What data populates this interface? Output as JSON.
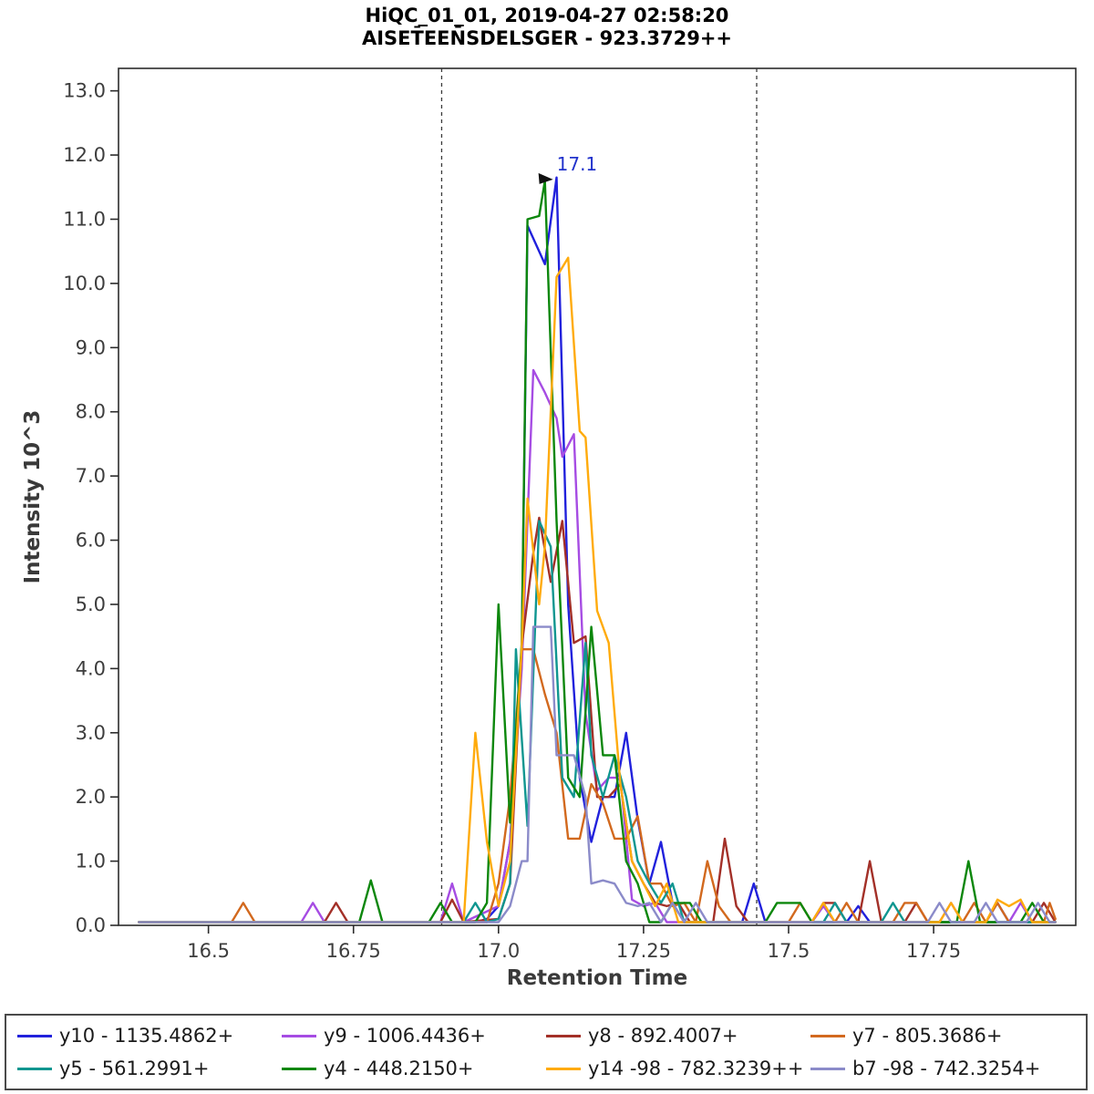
{
  "title": {
    "line1": "HiQC_01_01, 2019-04-27 02:58:20",
    "line2": "AISET̄EEN̄SDELSGER - 923.3729++"
  },
  "chart_data": {
    "type": "line",
    "title": "HiQC_01_01, 2019-04-27 02:58:20",
    "subtitle": "AISET̄EEN̄SDELSGER - 923.3729++",
    "xlabel": "Retention Time",
    "ylabel": "Intensity 10^3",
    "xlim": [
      16.345,
      17.995
    ],
    "ylim": [
      0,
      13.35
    ],
    "x_ticks": [
      16.5,
      16.75,
      17.0,
      17.25,
      17.5,
      17.75
    ],
    "x_tick_labels": [
      "16.5",
      "16.75",
      "17.0",
      "17.25",
      "17.5",
      "17.75"
    ],
    "y_ticks": [
      0,
      1,
      2,
      3,
      4,
      5,
      6,
      7,
      8,
      9,
      10,
      11,
      12,
      13
    ],
    "y_tick_labels": [
      "0.0",
      "1.0",
      "2.0",
      "3.0",
      "4.0",
      "5.0",
      "6.0",
      "7.0",
      "8.0",
      "9.0",
      "10.0",
      "11.0",
      "12.0",
      "13.0"
    ],
    "grid": false,
    "legend_position": "bottom",
    "integration_boundaries": [
      16.902,
      17.445
    ],
    "peak_annotation": {
      "label": "17.1",
      "x": 17.094,
      "y": 11.62
    },
    "series": [
      {
        "id": "y10",
        "label": "y10 - 1135.4862+",
        "color": "#2121dc",
        "points": [
          [
            16.38,
            0.05
          ],
          [
            16.96,
            0.05
          ],
          [
            16.98,
            0.1
          ],
          [
            17.0,
            0.3
          ],
          [
            17.02,
            1.3
          ],
          [
            17.04,
            4.3
          ],
          [
            17.05,
            10.9
          ],
          [
            17.07,
            10.5
          ],
          [
            17.08,
            10.3
          ],
          [
            17.1,
            11.65
          ],
          [
            17.12,
            5.0
          ],
          [
            17.14,
            2.3
          ],
          [
            17.16,
            1.3
          ],
          [
            17.18,
            2.0
          ],
          [
            17.2,
            2.0
          ],
          [
            17.22,
            3.0
          ],
          [
            17.24,
            1.65
          ],
          [
            17.26,
            0.65
          ],
          [
            17.28,
            1.3
          ],
          [
            17.3,
            0.35
          ],
          [
            17.32,
            0.05
          ],
          [
            17.42,
            0.05
          ],
          [
            17.44,
            0.65
          ],
          [
            17.46,
            0.05
          ],
          [
            17.6,
            0.05
          ],
          [
            17.62,
            0.3
          ],
          [
            17.64,
            0.05
          ],
          [
            17.84,
            0.05
          ],
          [
            17.86,
            0.35
          ],
          [
            17.88,
            0.05
          ],
          [
            17.96,
            0.05
          ]
        ]
      },
      {
        "id": "y9",
        "label": "y9 - 1006.4436+",
        "color": "#a64ce3",
        "points": [
          [
            16.38,
            0.05
          ],
          [
            16.66,
            0.05
          ],
          [
            16.68,
            0.35
          ],
          [
            16.7,
            0.05
          ],
          [
            16.9,
            0.05
          ],
          [
            16.92,
            0.65
          ],
          [
            16.94,
            0.05
          ],
          [
            17.0,
            0.3
          ],
          [
            17.02,
            1.3
          ],
          [
            17.04,
            4.0
          ],
          [
            17.06,
            8.65
          ],
          [
            17.08,
            8.3
          ],
          [
            17.1,
            7.9
          ],
          [
            17.11,
            7.3
          ],
          [
            17.13,
            7.65
          ],
          [
            17.15,
            3.3
          ],
          [
            17.17,
            2.1
          ],
          [
            17.19,
            2.3
          ],
          [
            17.21,
            2.3
          ],
          [
            17.23,
            0.4
          ],
          [
            17.25,
            0.3
          ],
          [
            17.27,
            0.35
          ],
          [
            17.29,
            0.05
          ],
          [
            17.54,
            0.05
          ],
          [
            17.56,
            0.3
          ],
          [
            17.58,
            0.05
          ],
          [
            17.76,
            0.05
          ],
          [
            17.78,
            0.35
          ],
          [
            17.8,
            0.05
          ],
          [
            17.88,
            0.05
          ],
          [
            17.9,
            0.35
          ],
          [
            17.92,
            0.05
          ],
          [
            17.96,
            0.05
          ]
        ]
      },
      {
        "id": "y8",
        "label": "y8 - 892.4007+",
        "color": "#a33028",
        "points": [
          [
            16.38,
            0.05
          ],
          [
            16.7,
            0.05
          ],
          [
            16.72,
            0.35
          ],
          [
            16.74,
            0.05
          ],
          [
            16.9,
            0.05
          ],
          [
            16.92,
            0.4
          ],
          [
            16.94,
            0.05
          ],
          [
            17.0,
            0.1
          ],
          [
            17.02,
            0.65
          ],
          [
            17.04,
            4.35
          ],
          [
            17.06,
            5.8
          ],
          [
            17.07,
            6.35
          ],
          [
            17.09,
            5.35
          ],
          [
            17.11,
            6.3
          ],
          [
            17.13,
            4.4
          ],
          [
            17.15,
            4.5
          ],
          [
            17.17,
            2.0
          ],
          [
            17.19,
            2.0
          ],
          [
            17.21,
            2.2
          ],
          [
            17.23,
            1.0
          ],
          [
            17.25,
            0.65
          ],
          [
            17.27,
            0.35
          ],
          [
            17.29,
            0.3
          ],
          [
            17.31,
            0.35
          ],
          [
            17.33,
            0.05
          ],
          [
            17.37,
            0.05
          ],
          [
            17.39,
            1.35
          ],
          [
            17.41,
            0.3
          ],
          [
            17.43,
            0.05
          ],
          [
            17.54,
            0.05
          ],
          [
            17.56,
            0.35
          ],
          [
            17.58,
            0.35
          ],
          [
            17.6,
            0.05
          ],
          [
            17.62,
            0.05
          ],
          [
            17.64,
            1.0
          ],
          [
            17.66,
            0.05
          ],
          [
            17.7,
            0.05
          ],
          [
            17.72,
            0.35
          ],
          [
            17.74,
            0.05
          ],
          [
            17.92,
            0.05
          ],
          [
            17.94,
            0.35
          ],
          [
            17.96,
            0.05
          ]
        ]
      },
      {
        "id": "y7",
        "label": "y7 - 805.3686+",
        "color": "#d2691e",
        "points": [
          [
            16.38,
            0.05
          ],
          [
            16.54,
            0.05
          ],
          [
            16.56,
            0.35
          ],
          [
            16.58,
            0.05
          ],
          [
            16.98,
            0.05
          ],
          [
            17.0,
            0.65
          ],
          [
            17.02,
            2.0
          ],
          [
            17.04,
            4.3
          ],
          [
            17.06,
            4.3
          ],
          [
            17.08,
            3.6
          ],
          [
            17.1,
            3.0
          ],
          [
            17.12,
            1.35
          ],
          [
            17.14,
            1.35
          ],
          [
            17.16,
            2.2
          ],
          [
            17.18,
            1.9
          ],
          [
            17.2,
            1.35
          ],
          [
            17.22,
            1.35
          ],
          [
            17.24,
            1.7
          ],
          [
            17.26,
            0.65
          ],
          [
            17.28,
            0.65
          ],
          [
            17.3,
            0.3
          ],
          [
            17.32,
            0.35
          ],
          [
            17.34,
            0.05
          ],
          [
            17.36,
            1.0
          ],
          [
            17.38,
            0.3
          ],
          [
            17.4,
            0.05
          ],
          [
            17.5,
            0.05
          ],
          [
            17.52,
            0.35
          ],
          [
            17.54,
            0.05
          ],
          [
            17.58,
            0.05
          ],
          [
            17.6,
            0.35
          ],
          [
            17.62,
            0.05
          ],
          [
            17.68,
            0.05
          ],
          [
            17.7,
            0.35
          ],
          [
            17.72,
            0.35
          ],
          [
            17.74,
            0.05
          ],
          [
            17.8,
            0.05
          ],
          [
            17.82,
            0.35
          ],
          [
            17.84,
            0.05
          ],
          [
            17.86,
            0.35
          ],
          [
            17.88,
            0.05
          ],
          [
            17.94,
            0.05
          ],
          [
            17.95,
            0.35
          ],
          [
            17.96,
            0.1
          ]
        ]
      },
      {
        "id": "y5",
        "label": "y5 - 561.2991+",
        "color": "#0f9690",
        "points": [
          [
            16.38,
            0.05
          ],
          [
            16.94,
            0.05
          ],
          [
            16.96,
            0.35
          ],
          [
            16.98,
            0.05
          ],
          [
            17.0,
            0.1
          ],
          [
            17.02,
            0.65
          ],
          [
            17.03,
            4.3
          ],
          [
            17.05,
            1.55
          ],
          [
            17.07,
            6.3
          ],
          [
            17.09,
            5.9
          ],
          [
            17.11,
            2.3
          ],
          [
            17.13,
            2.0
          ],
          [
            17.15,
            4.4
          ],
          [
            17.16,
            2.65
          ],
          [
            17.18,
            2.0
          ],
          [
            17.2,
            2.65
          ],
          [
            17.22,
            2.0
          ],
          [
            17.24,
            1.0
          ],
          [
            17.26,
            0.65
          ],
          [
            17.28,
            0.35
          ],
          [
            17.3,
            0.65
          ],
          [
            17.32,
            0.05
          ],
          [
            17.56,
            0.05
          ],
          [
            17.58,
            0.35
          ],
          [
            17.6,
            0.05
          ],
          [
            17.66,
            0.05
          ],
          [
            17.68,
            0.35
          ],
          [
            17.7,
            0.05
          ],
          [
            17.96,
            0.05
          ]
        ]
      },
      {
        "id": "y4",
        "label": "y4 - 448.2150+",
        "color": "#0c870c",
        "points": [
          [
            16.38,
            0.05
          ],
          [
            16.76,
            0.05
          ],
          [
            16.78,
            0.7
          ],
          [
            16.8,
            0.05
          ],
          [
            16.88,
            0.05
          ],
          [
            16.9,
            0.35
          ],
          [
            16.92,
            0.05
          ],
          [
            16.96,
            0.05
          ],
          [
            16.98,
            0.35
          ],
          [
            17.0,
            5.0
          ],
          [
            17.02,
            1.6
          ],
          [
            17.04,
            4.4
          ],
          [
            17.05,
            11.0
          ],
          [
            17.07,
            11.05
          ],
          [
            17.08,
            11.6
          ],
          [
            17.1,
            6.3
          ],
          [
            17.12,
            2.3
          ],
          [
            17.14,
            2.0
          ],
          [
            17.16,
            4.65
          ],
          [
            17.18,
            2.65
          ],
          [
            17.2,
            2.65
          ],
          [
            17.22,
            1.0
          ],
          [
            17.24,
            0.65
          ],
          [
            17.26,
            0.05
          ],
          [
            17.28,
            0.05
          ],
          [
            17.3,
            0.35
          ],
          [
            17.33,
            0.35
          ],
          [
            17.35,
            0.05
          ],
          [
            17.46,
            0.05
          ],
          [
            17.48,
            0.35
          ],
          [
            17.52,
            0.35
          ],
          [
            17.54,
            0.05
          ],
          [
            17.79,
            0.05
          ],
          [
            17.81,
            1.0
          ],
          [
            17.83,
            0.05
          ],
          [
            17.9,
            0.05
          ],
          [
            17.92,
            0.35
          ],
          [
            17.94,
            0.05
          ],
          [
            17.96,
            0.05
          ]
        ]
      },
      {
        "id": "y14-98",
        "label": "y14 -98 - 782.3239++",
        "color": "#ffab0c",
        "points": [
          [
            16.38,
            0.05
          ],
          [
            16.94,
            0.05
          ],
          [
            16.96,
            3.0
          ],
          [
            16.98,
            1.3
          ],
          [
            17.0,
            0.3
          ],
          [
            17.02,
            1.0
          ],
          [
            17.04,
            4.35
          ],
          [
            17.05,
            6.65
          ],
          [
            17.07,
            5.0
          ],
          [
            17.08,
            5.9
          ],
          [
            17.1,
            10.1
          ],
          [
            17.12,
            10.4
          ],
          [
            17.14,
            7.7
          ],
          [
            17.15,
            7.6
          ],
          [
            17.17,
            4.9
          ],
          [
            17.19,
            4.4
          ],
          [
            17.21,
            2.2
          ],
          [
            17.23,
            1.0
          ],
          [
            17.25,
            0.65
          ],
          [
            17.27,
            0.3
          ],
          [
            17.29,
            0.65
          ],
          [
            17.31,
            0.05
          ],
          [
            17.54,
            0.05
          ],
          [
            17.56,
            0.35
          ],
          [
            17.58,
            0.05
          ],
          [
            17.76,
            0.05
          ],
          [
            17.78,
            0.35
          ],
          [
            17.8,
            0.05
          ],
          [
            17.84,
            0.05
          ],
          [
            17.86,
            0.4
          ],
          [
            17.88,
            0.3
          ],
          [
            17.9,
            0.4
          ],
          [
            17.92,
            0.05
          ],
          [
            17.96,
            0.05
          ]
        ]
      },
      {
        "id": "b7-98",
        "label": "b7 -98 - 742.3254+",
        "color": "#8b8bc9",
        "points": [
          [
            16.38,
            0.05
          ],
          [
            17.0,
            0.05
          ],
          [
            17.02,
            0.3
          ],
          [
            17.04,
            1.0
          ],
          [
            17.05,
            1.0
          ],
          [
            17.06,
            4.65
          ],
          [
            17.09,
            4.65
          ],
          [
            17.1,
            2.65
          ],
          [
            17.13,
            2.65
          ],
          [
            17.15,
            2.0
          ],
          [
            17.16,
            0.65
          ],
          [
            17.18,
            0.7
          ],
          [
            17.2,
            0.65
          ],
          [
            17.22,
            0.35
          ],
          [
            17.24,
            0.3
          ],
          [
            17.26,
            0.35
          ],
          [
            17.28,
            0.05
          ],
          [
            17.3,
            0.35
          ],
          [
            17.32,
            0.05
          ],
          [
            17.34,
            0.35
          ],
          [
            17.36,
            0.05
          ],
          [
            17.74,
            0.05
          ],
          [
            17.76,
            0.35
          ],
          [
            17.78,
            0.05
          ],
          [
            17.82,
            0.05
          ],
          [
            17.84,
            0.35
          ],
          [
            17.86,
            0.05
          ],
          [
            17.91,
            0.05
          ],
          [
            17.93,
            0.35
          ],
          [
            17.95,
            0.05
          ],
          [
            17.96,
            0.05
          ]
        ]
      }
    ]
  }
}
